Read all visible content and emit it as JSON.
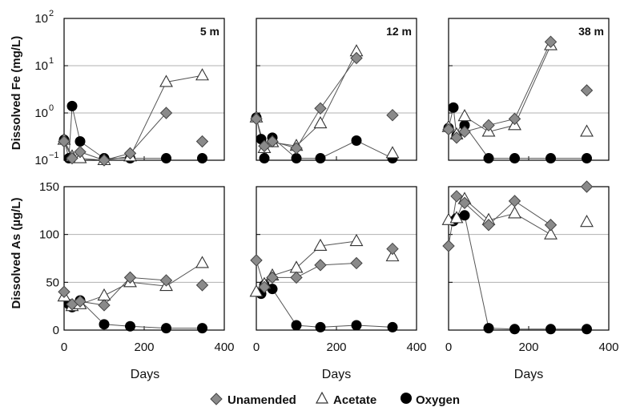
{
  "chart_data": {
    "type": "scatter",
    "x_label": "Days",
    "x_lim": [
      -5,
      400
    ],
    "x_ticks": [
      0,
      200,
      400
    ],
    "legend": {
      "placement": "bottom-center",
      "entries": [
        {
          "label": "Unamended",
          "marker": "diamond",
          "color": "#8a8a8a"
        },
        {
          "label": "Acetate",
          "marker": "triangle-open",
          "color": "#ffffff"
        },
        {
          "label": "Oxygen",
          "marker": "circle",
          "color": "#000000"
        }
      ]
    },
    "rows": [
      {
        "key": "fe",
        "y_label": "Dissolved Fe (mg/L)",
        "scale": "log",
        "y_lim": [
          0.1,
          100
        ],
        "y_ticks": [
          0.1,
          1,
          10,
          100
        ],
        "grid": true
      },
      {
        "key": "as",
        "y_label": "Dissolved As (µg/L)",
        "scale": "linear",
        "y_lim": [
          0,
          150
        ],
        "y_ticks": [
          0,
          50,
          100,
          150
        ],
        "grid": true
      }
    ],
    "panels": [
      {
        "tag": "5 m",
        "fe": {
          "Unamended": [
            [
              0,
              0.25
            ],
            [
              20,
              0.11
            ],
            [
              40,
              0.15
            ],
            [
              100,
              0.1
            ],
            [
              165,
              0.14
            ],
            [
              255,
              1.0
            ],
            [
              345,
              0.25
            ]
          ],
          "Acetate": [
            [
              0,
              0.27
            ],
            [
              20,
              0.12
            ],
            [
              40,
              0.11
            ],
            [
              100,
              0.1
            ],
            [
              165,
              0.12
            ],
            [
              255,
              4.5
            ],
            [
              345,
              6.2
            ]
          ],
          "Oxygen": [
            [
              0,
              0.27
            ],
            [
              12,
              0.11
            ],
            [
              20,
              1.4
            ],
            [
              40,
              0.25
            ],
            [
              100,
              0.11
            ],
            [
              165,
              0.11
            ],
            [
              255,
              0.11
            ],
            [
              345,
              0.11
            ]
          ],
          "connect": {
            "Unamended": 6,
            "Acetate": 7,
            "Oxygen": 7
          }
        },
        "as": {
          "Unamended": [
            [
              0,
              40
            ],
            [
              20,
              27
            ],
            [
              40,
              30
            ],
            [
              100,
              26
            ],
            [
              165,
              55
            ],
            [
              255,
              52
            ],
            [
              345,
              47
            ]
          ],
          "Acetate": [
            [
              0,
              35
            ],
            [
              20,
              25
            ],
            [
              40,
              27
            ],
            [
              100,
              36
            ],
            [
              165,
              50
            ],
            [
              255,
              46
            ],
            [
              345,
              70
            ]
          ],
          "Oxygen": [
            [
              12,
              27
            ],
            [
              20,
              24
            ],
            [
              40,
              31
            ],
            [
              100,
              6
            ],
            [
              165,
              4
            ],
            [
              255,
              2
            ],
            [
              345,
              2
            ]
          ],
          "connect": {
            "Unamended": 6,
            "Acetate": 7,
            "Oxygen": 7
          }
        }
      },
      {
        "tag": "12 m",
        "fe": {
          "Unamended": [
            [
              0,
              0.75
            ],
            [
              20,
              0.2
            ],
            [
              40,
              0.25
            ],
            [
              100,
              0.18
            ],
            [
              160,
              1.25
            ],
            [
              250,
              14.5
            ],
            [
              340,
              0.9
            ]
          ],
          "Acetate": [
            [
              0,
              0.8
            ],
            [
              20,
              0.18
            ],
            [
              40,
              0.24
            ],
            [
              100,
              0.2
            ],
            [
              160,
              0.6
            ],
            [
              250,
              20
            ],
            [
              340,
              0.14
            ]
          ],
          "Oxygen": [
            [
              0,
              0.8
            ],
            [
              12,
              0.28
            ],
            [
              20,
              0.11
            ],
            [
              40,
              0.3
            ],
            [
              100,
              0.11
            ],
            [
              160,
              0.11
            ],
            [
              250,
              0.26
            ],
            [
              340,
              0.11
            ]
          ],
          "connect": {
            "Unamended": 6,
            "Acetate": 6,
            "Oxygen": 8
          }
        },
        "as": {
          "Unamended": [
            [
              0,
              73
            ],
            [
              20,
              45
            ],
            [
              40,
              55
            ],
            [
              100,
              55
            ],
            [
              160,
              68
            ],
            [
              250,
              70
            ],
            [
              340,
              85
            ]
          ],
          "Acetate": [
            [
              0,
              40
            ],
            [
              20,
              48
            ],
            [
              40,
              57
            ],
            [
              100,
              65
            ],
            [
              160,
              88
            ],
            [
              250,
              93
            ],
            [
              340,
              77
            ]
          ],
          "Oxygen": [
            [
              12,
              38
            ],
            [
              20,
              47
            ],
            [
              40,
              43
            ],
            [
              100,
              5
            ],
            [
              160,
              3
            ],
            [
              250,
              5
            ],
            [
              340,
              3
            ]
          ],
          "connect": {
            "Unamended": 6,
            "Acetate": 6,
            "Oxygen": 7
          }
        }
      },
      {
        "tag": "38 m",
        "fe": {
          "Unamended": [
            [
              0,
              0.45
            ],
            [
              20,
              0.3
            ],
            [
              40,
              0.4
            ],
            [
              100,
              0.55
            ],
            [
              165,
              0.75
            ],
            [
              255,
              32
            ],
            [
              345,
              3.0
            ]
          ],
          "Acetate": [
            [
              0,
              0.5
            ],
            [
              20,
              0.35
            ],
            [
              40,
              0.85
            ],
            [
              100,
              0.4
            ],
            [
              165,
              0.55
            ],
            [
              255,
              27
            ],
            [
              345,
              0.4
            ]
          ],
          "Oxygen": [
            [
              0,
              0.48
            ],
            [
              12,
              1.3
            ],
            [
              20,
              0.33
            ],
            [
              40,
              0.55
            ],
            [
              100,
              0.11
            ],
            [
              165,
              0.11
            ],
            [
              255,
              0.11
            ],
            [
              345,
              0.11
            ]
          ],
          "connect": {
            "Unamended": 6,
            "Acetate": 6,
            "Oxygen": 8
          }
        },
        "as": {
          "Unamended": [
            [
              0,
              88
            ],
            [
              20,
              140
            ],
            [
              40,
              133
            ],
            [
              100,
              110
            ],
            [
              165,
              135
            ],
            [
              255,
              110
            ],
            [
              345,
              150
            ]
          ],
          "Acetate": [
            [
              0,
              115
            ],
            [
              20,
              117
            ],
            [
              40,
              137
            ],
            [
              100,
              115
            ],
            [
              165,
              122
            ],
            [
              255,
              100
            ],
            [
              345,
              113
            ]
          ],
          "Oxygen": [
            [
              12,
              114
            ],
            [
              20,
              117
            ],
            [
              40,
              120
            ],
            [
              100,
              2
            ],
            [
              165,
              1
            ],
            [
              255,
              1
            ],
            [
              345,
              1
            ]
          ],
          "connect": {
            "Unamended": 6,
            "Acetate": 6,
            "Oxygen": 7
          }
        }
      }
    ]
  }
}
